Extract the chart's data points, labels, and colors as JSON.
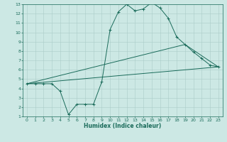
{
  "title": "",
  "xlabel": "Humidex (Indice chaleur)",
  "xlim": [
    -0.5,
    23.5
  ],
  "ylim": [
    1,
    13
  ],
  "xticks": [
    0,
    1,
    2,
    3,
    4,
    5,
    6,
    7,
    8,
    9,
    10,
    11,
    12,
    13,
    14,
    15,
    16,
    17,
    18,
    19,
    20,
    21,
    22,
    23
  ],
  "yticks": [
    1,
    2,
    3,
    4,
    5,
    6,
    7,
    8,
    9,
    10,
    11,
    12,
    13
  ],
  "bg_color": "#cce8e4",
  "grid_color": "#aaccc8",
  "line_color": "#1a6b5a",
  "line1_x": [
    0,
    1,
    2,
    3,
    4,
    5,
    6,
    7,
    8,
    9,
    10,
    11,
    12,
    13,
    14,
    15,
    16,
    17,
    18,
    19,
    20,
    21,
    22,
    23
  ],
  "line1_y": [
    4.5,
    4.5,
    4.5,
    4.5,
    3.7,
    1.2,
    2.3,
    2.3,
    2.3,
    4.7,
    10.3,
    12.2,
    13.0,
    12.3,
    12.5,
    13.2,
    12.6,
    11.5,
    9.5,
    8.7,
    7.9,
    7.2,
    6.5,
    6.3
  ],
  "line2_x": [
    0,
    23
  ],
  "line2_y": [
    4.5,
    6.3
  ],
  "line3_x": [
    0,
    19,
    23
  ],
  "line3_y": [
    4.5,
    8.7,
    6.3
  ],
  "figsize": [
    3.2,
    2.0
  ],
  "dpi": 100
}
